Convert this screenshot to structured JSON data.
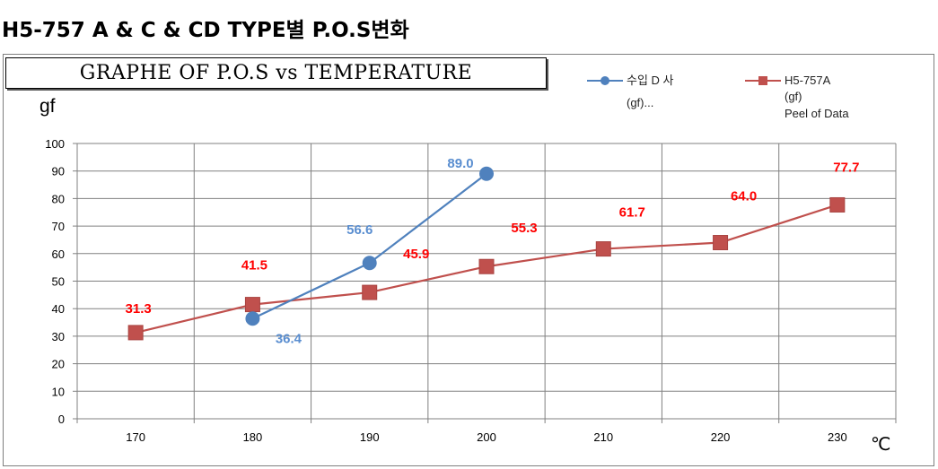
{
  "page": {
    "title": "H5-757 A & C & CD TYPE별 P.O.S변화"
  },
  "colors": {
    "series_blue": "#4f81bd",
    "series_red": "#c0504d",
    "label_blue": "#5a8ed0",
    "label_red": "#ff0000",
    "grid": "#808080"
  },
  "chart_data": {
    "type": "line",
    "title": "GRAPHE  OF P.O.S   vs   TEMPERATURE",
    "ylabel": "gf",
    "xlabel": "℃",
    "x_categories": [
      "170",
      "180",
      "190",
      "200",
      "210",
      "220",
      "230"
    ],
    "ylim": [
      0,
      100
    ],
    "y_ticks": [
      0,
      10,
      20,
      30,
      40,
      50,
      60,
      70,
      80,
      90,
      100
    ],
    "grid": true,
    "legend_position": "top-right",
    "series": [
      {
        "name": "수입 D 사",
        "name_line2": "(gf)...",
        "marker": "circle",
        "color": "#4f81bd",
        "points": [
          {
            "x": "180",
            "y": 36.4,
            "label": "36.4"
          },
          {
            "x": "190",
            "y": 56.6,
            "label": "56.6"
          },
          {
            "x": "200",
            "y": 89.0,
            "label": "89.0"
          }
        ]
      },
      {
        "name": "H5-757A",
        "name_line2": "(gf)",
        "name_line3": "Peel of Data",
        "marker": "square",
        "color": "#c0504d",
        "points": [
          {
            "x": "170",
            "y": 31.3,
            "label": "31.3"
          },
          {
            "x": "180",
            "y": 41.5,
            "label": "41.5"
          },
          {
            "x": "190",
            "y": 45.9,
            "label": "45.9"
          },
          {
            "x": "200",
            "y": 55.3,
            "label": "55.3"
          },
          {
            "x": "210",
            "y": 61.7,
            "label": "61.7"
          },
          {
            "x": "220",
            "y": 64.0,
            "label": "64.0"
          },
          {
            "x": "230",
            "y": 77.7,
            "label": "77.7"
          }
        ]
      }
    ]
  }
}
